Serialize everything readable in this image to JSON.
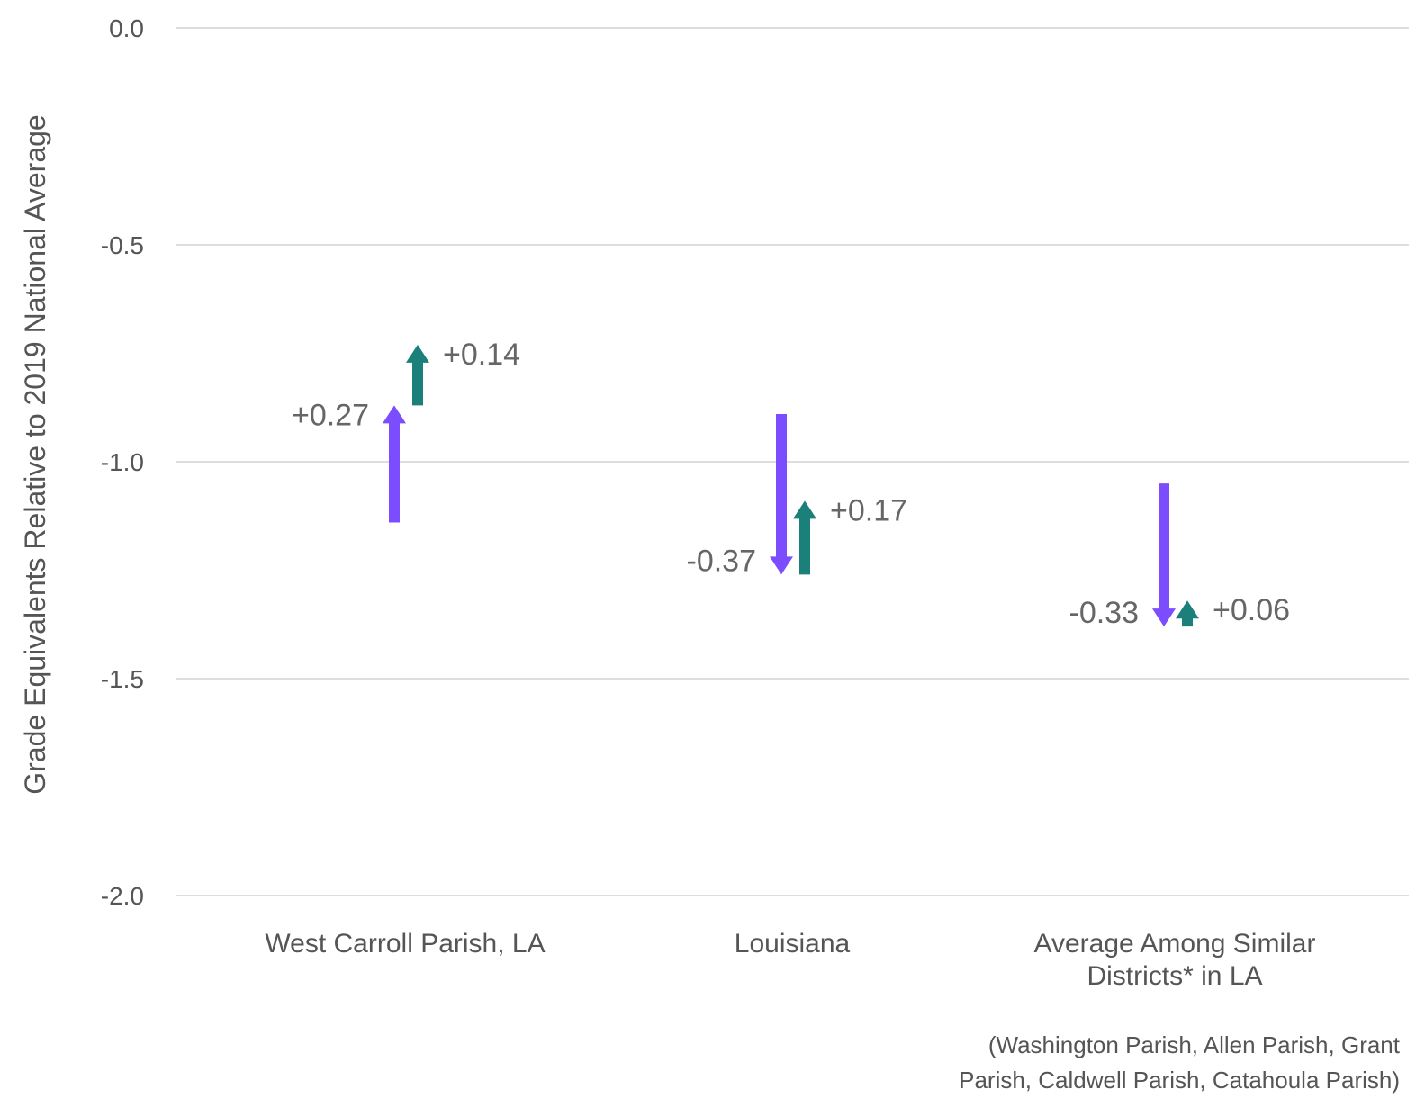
{
  "chart_data": {
    "type": "arrow",
    "ylabel": "Grade Equivalents Relative to 2019 National Average",
    "ylim": [
      -2.0,
      0.0
    ],
    "yticks": [
      {
        "value": 0.0,
        "label": "0.0"
      },
      {
        "value": -0.5,
        "label": "-0.5"
      },
      {
        "value": -1.0,
        "label": "-1.0"
      },
      {
        "value": -1.5,
        "label": "-1.5"
      },
      {
        "value": -2.0,
        "label": "-2.0"
      }
    ],
    "grid": true,
    "categories": [
      {
        "lines": [
          "West Carroll Parish, LA"
        ]
      },
      {
        "lines": [
          "Louisiana"
        ]
      },
      {
        "lines": [
          "Average Among Similar",
          "Districts* in LA"
        ]
      }
    ],
    "series": [
      {
        "color": "#7c4dff",
        "arrows": [
          {
            "start": -1.14,
            "end": -0.87,
            "label": "+0.27"
          },
          {
            "start": -0.89,
            "end": -1.26,
            "label": "-0.37"
          },
          {
            "start": -1.05,
            "end": -1.38,
            "label": "-0.33"
          }
        ]
      },
      {
        "color": "#1b7f7a",
        "arrows": [
          {
            "start": -0.87,
            "end": -0.73,
            "label": "+0.14"
          },
          {
            "start": -1.26,
            "end": -1.09,
            "label": "+0.17"
          },
          {
            "start": -1.38,
            "end": -1.32,
            "label": "+0.06"
          }
        ]
      }
    ],
    "footnote": [
      "(Washington Parish, Allen Parish, Grant",
      "Parish, Caldwell Parish, Catahoula Parish)"
    ]
  }
}
